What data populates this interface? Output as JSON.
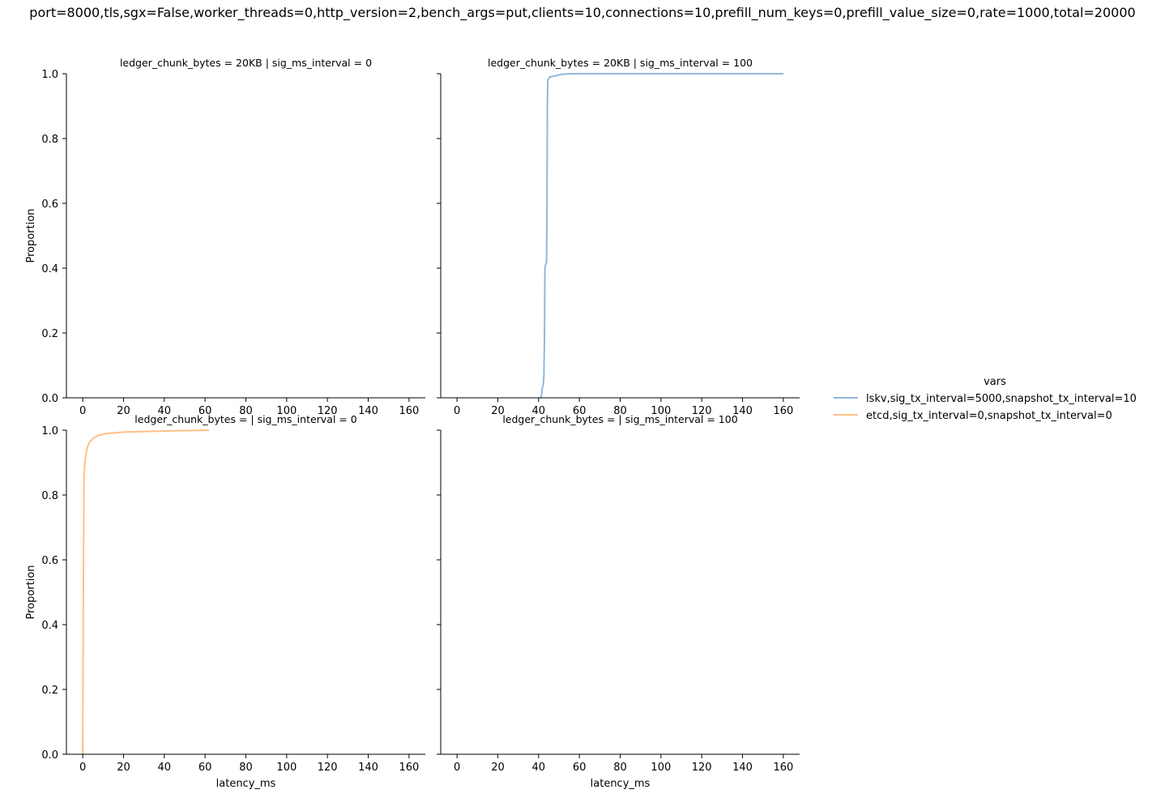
{
  "figure": {
    "suptitle": "port=8000,tls,sgx=False,worker_threads=0,http_version=2,bench_args=put,clients=10,connections=10,prefill_num_keys=0,prefill_value_size=0,rate=1000,total=20000"
  },
  "chart_data": {
    "type": "line",
    "kind": "ecdf",
    "grid": false,
    "legend": {
      "title": "vars",
      "placement": "center-right",
      "entries": [
        {
          "label": "lskv,sig_tx_interval=5000,snapshot_tx_interval=10",
          "color": "#8fb8de"
        },
        {
          "label": "etcd,sig_tx_interval=0,snapshot_tx_interval=0",
          "color": "#ffbf86"
        }
      ]
    },
    "xlabel": "latency_ms",
    "ylabel": "Proportion",
    "xlim": [
      -8,
      168
    ],
    "ylim": [
      0,
      1
    ],
    "xticks": [
      "0",
      "20",
      "40",
      "60",
      "80",
      "100",
      "120",
      "140",
      "160"
    ],
    "yticks": [
      "0.0",
      "0.2",
      "0.4",
      "0.6",
      "0.8",
      "1.0"
    ],
    "panels": [
      {
        "title": "ledger_chunk_bytes = 20KB | sig_ms_interval = 0",
        "row": 0,
        "col": 0,
        "show_xlabel": false,
        "show_ylabel": true,
        "show_yticklabels": true,
        "series": []
      },
      {
        "title": "ledger_chunk_bytes = 20KB | sig_ms_interval = 100",
        "row": 0,
        "col": 1,
        "show_xlabel": false,
        "show_ylabel": false,
        "show_yticklabels": false,
        "series": [
          {
            "legend_index": 0,
            "points": [
              [
                41,
                0
              ],
              [
                41.5,
                0.01
              ],
              [
                41.8,
                0.03
              ],
              [
                42.3,
                0.04
              ],
              [
                42.6,
                0.07
              ],
              [
                42.9,
                0.2
              ],
              [
                43.1,
                0.4
              ],
              [
                43.4,
                0.41
              ],
              [
                43.9,
                0.42
              ],
              [
                44.1,
                0.6
              ],
              [
                44.3,
                0.9
              ],
              [
                44.5,
                0.98
              ],
              [
                45.5,
                0.99
              ],
              [
                48,
                0.993
              ],
              [
                51,
                0.998
              ],
              [
                56,
                1.0
              ],
              [
                160,
                1.0
              ]
            ]
          }
        ]
      },
      {
        "title": "ledger_chunk_bytes =  | sig_ms_interval = 0",
        "row": 1,
        "col": 0,
        "show_xlabel": true,
        "show_ylabel": true,
        "show_yticklabels": true,
        "series": [
          {
            "legend_index": 1,
            "points": [
              [
                0,
                0
              ],
              [
                0.3,
                0.5
              ],
              [
                0.6,
                0.85
              ],
              [
                1,
                0.9
              ],
              [
                2,
                0.94
              ],
              [
                3,
                0.96
              ],
              [
                5,
                0.975
              ],
              [
                8,
                0.985
              ],
              [
                12,
                0.99
              ],
              [
                20,
                0.994
              ],
              [
                30,
                0.996
              ],
              [
                45,
                0.998
              ],
              [
                62,
                1.0
              ]
            ]
          }
        ]
      },
      {
        "title": "ledger_chunk_bytes =  | sig_ms_interval = 100",
        "row": 1,
        "col": 1,
        "show_xlabel": true,
        "show_ylabel": false,
        "show_yticklabels": false,
        "series": []
      }
    ]
  }
}
